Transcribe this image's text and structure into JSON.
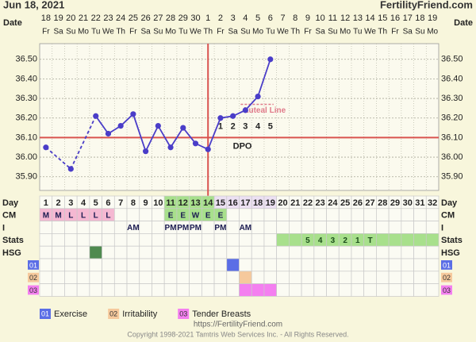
{
  "header": {
    "date": "Jun 18, 2021",
    "site": "FertilityFriend.com"
  },
  "footer": {
    "url": "https://FertilityFriend.com",
    "copyright": "Copyright 1998-2021 Tamtris Web Services Inc. - All Rights Reserved."
  },
  "chart_data": {
    "type": "line",
    "x_label": "Date",
    "dates": [
      18,
      19,
      20,
      21,
      22,
      23,
      24,
      25,
      26,
      27,
      28,
      29,
      30,
      1,
      2,
      3,
      4,
      5,
      6,
      7,
      8,
      9,
      10,
      11,
      12,
      13,
      14,
      15,
      16,
      17,
      18,
      19
    ],
    "weekdays": [
      "Fr",
      "Sa",
      "Su",
      "Mo",
      "Tu",
      "We",
      "Th",
      "Fr",
      "Sa",
      "Su",
      "Mo",
      "Tu",
      "We",
      "Th",
      "Fr",
      "Sa",
      "Su",
      "Mo",
      "Tu",
      "We",
      "Th",
      "Fr",
      "Sa",
      "Su",
      "Mo",
      "Tu",
      "We",
      "Th",
      "Fr",
      "Sa",
      "Su",
      "Mo"
    ],
    "categories": [
      1,
      2,
      3,
      4,
      5,
      6,
      7,
      8,
      9,
      10,
      11,
      12,
      13,
      14,
      15,
      16,
      17,
      18,
      19,
      20,
      21,
      22,
      23,
      24,
      25,
      26,
      27,
      28,
      29,
      30,
      31,
      32
    ],
    "values": [
      36.05,
      null,
      35.94,
      null,
      36.21,
      36.12,
      36.16,
      36.22,
      36.03,
      36.16,
      36.05,
      36.15,
      36.07,
      36.04,
      36.2,
      36.21,
      36.24,
      36.31,
      36.5,
      null,
      null,
      null,
      null,
      null,
      null,
      null,
      null,
      null,
      null,
      null,
      null,
      null
    ],
    "color": "#4a3dc8",
    "ylim": [
      35.83,
      36.58
    ],
    "yticks": [
      {
        "value": 35.9,
        "label": "35.90"
      },
      {
        "value": 36.0,
        "label": "36.00"
      },
      {
        "value": 36.1,
        "label": "36.10"
      },
      {
        "value": 36.2,
        "label": "36.20"
      },
      {
        "value": 36.3,
        "label": "36.30"
      },
      {
        "value": 36.4,
        "label": "36.40"
      },
      {
        "value": 36.5,
        "label": "36.50"
      }
    ],
    "grid": true,
    "coverline": 36.1,
    "coverline_color": "#d9534f",
    "ovulation_day": 14,
    "luteal_line": {
      "value": 36.27,
      "from": 17,
      "to": 19,
      "label": "Luteal Line",
      "color": "#e07a8a"
    },
    "dpo_label": "DPO",
    "dpo": [
      null,
      null,
      null,
      null,
      null,
      null,
      null,
      null,
      null,
      null,
      null,
      null,
      null,
      null,
      1,
      2,
      3,
      4,
      5,
      null,
      null,
      null,
      null,
      null,
      null,
      null,
      null,
      null,
      null,
      null,
      null,
      null
    ],
    "row_labels": {
      "day": "Day",
      "cm": "CM",
      "i": "I",
      "stats": "Stats",
      "hsg": "HSG"
    },
    "day_highlights": [
      {
        "from": 11,
        "to": 14,
        "color": "#a8e08c"
      },
      {
        "from": 15,
        "to": 19,
        "color": "#ece0f2"
      }
    ],
    "cm": [
      "M",
      "M",
      "L",
      "L",
      "L",
      "L",
      null,
      null,
      null,
      null,
      "E",
      "E",
      "W",
      "E",
      "E",
      null,
      null,
      null,
      null,
      null,
      null,
      null,
      null,
      null,
      null,
      null,
      null,
      null,
      null,
      null,
      null,
      null
    ],
    "cm_colors": {
      "M": "#f5b8d2",
      "L": "#f5b8d2",
      "E": "#a8e08c",
      "W": "#a8e08c"
    },
    "intercourse": [
      null,
      null,
      null,
      null,
      null,
      null,
      null,
      "AM",
      null,
      null,
      "PM",
      "PM",
      "PM",
      null,
      "PM",
      null,
      "AM",
      null,
      null,
      null,
      null,
      null,
      null,
      null,
      null,
      null,
      null,
      null,
      null,
      null,
      null,
      null
    ],
    "stats": [
      null,
      null,
      null,
      null,
      null,
      null,
      null,
      null,
      null,
      null,
      null,
      null,
      null,
      null,
      null,
      null,
      null,
      null,
      null,
      null,
      null,
      "5",
      "4",
      "3",
      "2",
      "1",
      "T",
      null,
      null,
      null,
      null,
      null
    ],
    "stats_highlight": {
      "from": 20,
      "to": 32,
      "color": "#a8e08c"
    },
    "hsg": {
      "days": [
        5
      ],
      "color": "#4f8a4f"
    },
    "symptoms": [
      {
        "code": "01",
        "name": "Exercise",
        "color": "#5b6ee6",
        "days": [
          16
        ]
      },
      {
        "code": "02",
        "name": "Irritability",
        "color": "#f6c99c",
        "days": [
          17
        ]
      },
      {
        "code": "03",
        "name": "Tender Breasts",
        "color": "#f47ff0",
        "days": [
          17,
          18,
          19
        ]
      }
    ]
  }
}
